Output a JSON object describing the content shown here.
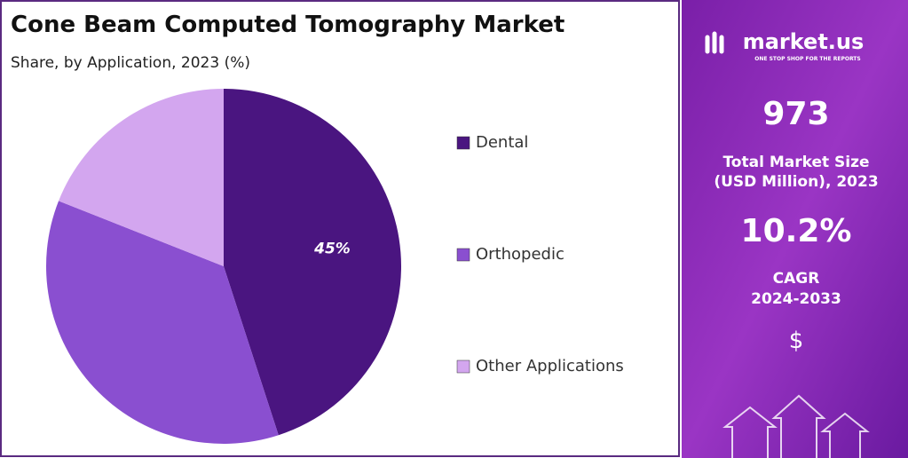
{
  "chart_data": {
    "type": "pie",
    "title": "Cone Beam Computed Tomography Market",
    "subtitle": "Share, by Application, 2023 (%)",
    "categories": [
      "Dental",
      "Orthopedic",
      "Other Applications"
    ],
    "values": [
      45,
      36,
      19
    ],
    "value_labels": [
      "45%",
      null,
      null
    ],
    "colors": [
      "#4a1580",
      "#8a4fd0",
      "#d3a6ef"
    ],
    "legend": "right"
  },
  "sidebar": {
    "brand": "market.us",
    "tagline": "ONE STOP SHOP FOR THE REPORTS",
    "market_size": "973",
    "market_size_label": [
      "Total Market Size",
      "(USD Million), 2023"
    ],
    "cagr": "10.2%",
    "cagr_label": [
      "CAGR",
      "2024-2033"
    ],
    "currency": "$"
  }
}
